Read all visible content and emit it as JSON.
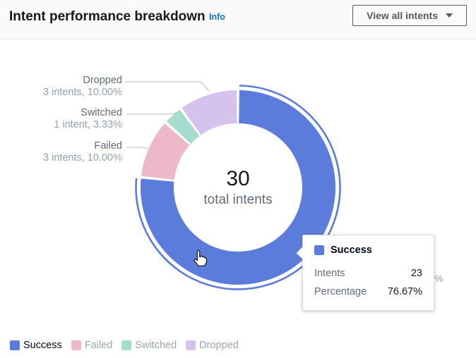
{
  "header": {
    "title": "Intent performance breakdown",
    "info_label": "Info",
    "view_button_label": "View all intents"
  },
  "chart_data": {
    "type": "donut",
    "total": {
      "value": "30",
      "label": "total intents"
    },
    "series": [
      {
        "name": "Success",
        "intents": 23,
        "percentage": 76.67,
        "color": "#5c7cdb"
      },
      {
        "name": "Failed",
        "intents": 3,
        "percentage": 10.0,
        "color": "#edb9c8"
      },
      {
        "name": "Switched",
        "intents": 1,
        "percentage": 3.33,
        "color": "#a6dcd0"
      },
      {
        "name": "Dropped",
        "intents": 3,
        "percentage": 10.0,
        "color": "#d5c3ed"
      }
    ],
    "highlighted": "Success",
    "legend_position": "bottom-left"
  },
  "callouts": [
    {
      "name": "Dropped",
      "detail": "3 intents, 10.00%"
    },
    {
      "name": "Switched",
      "detail": "1 intent, 3.33%"
    },
    {
      "name": "Failed",
      "detail": "3 intents, 10.00%"
    }
  ],
  "partial_label": "%",
  "tooltip": {
    "title": "Success",
    "rows": [
      {
        "label": "Intents",
        "value": "23"
      },
      {
        "label": "Percentage",
        "value": "76.67%"
      }
    ]
  }
}
